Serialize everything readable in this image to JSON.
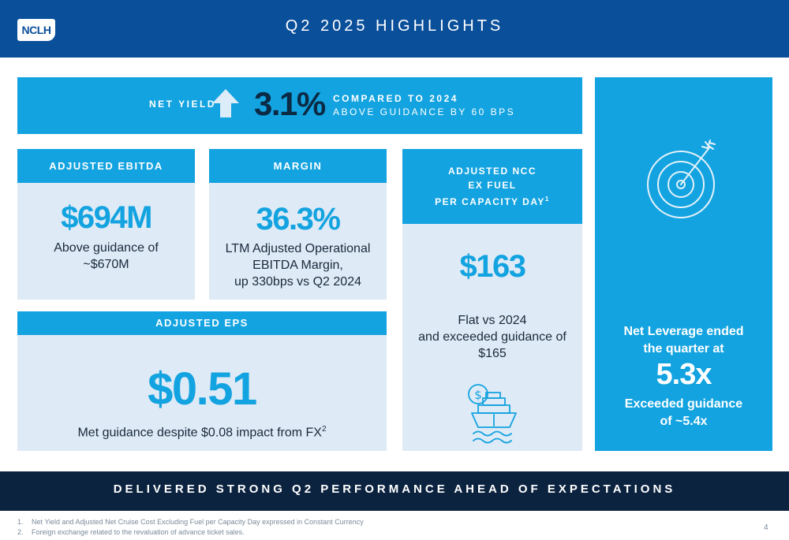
{
  "header": {
    "logo_text": "NCLH",
    "title": "Q2 2025 HIGHLIGHTS"
  },
  "net_yield": {
    "label": "NET YIELD",
    "footnote_marker": "1",
    "arrow_icon": "up-arrow-icon",
    "value": "3.1%",
    "comparison": "COMPARED TO 2024",
    "guidance": "ABOVE GUIDANCE BY 60 BPS"
  },
  "adjusted_ebitda": {
    "title": "ADJUSTED EBITDA",
    "value": "$694M",
    "desc_line1": "Above guidance of",
    "desc_line2": "~$670M"
  },
  "margin": {
    "title": "MARGIN",
    "value": "36.3%",
    "desc_line1": "LTM Adjusted Operational",
    "desc_line2": "EBITDA Margin,",
    "desc_line3": "up 330bps vs Q2 2024"
  },
  "adjusted_ncc": {
    "title_line1": "ADJUSTED NCC",
    "title_line2": "EX FUEL",
    "title_line3": "PER CAPACITY DAY",
    "footnote_marker": "1",
    "value": "$163",
    "desc_line1": "Flat vs 2024",
    "desc_line2": "and exceeded guidance of",
    "desc_line3": "$165",
    "icon": "cruise-ship-dollar-icon"
  },
  "adjusted_eps": {
    "title": "ADJUSTED EPS",
    "value": "$0.51",
    "desc": "Met guidance despite $0.08 impact from FX",
    "footnote_marker": "2"
  },
  "net_leverage": {
    "icon": "target-icon",
    "line1": "Net Leverage ended",
    "line2": "the quarter at",
    "value": "5.3x",
    "line3": "Exceeded guidance",
    "line4": "of ~5.4x"
  },
  "banner": {
    "text": "DELIVERED STRONG Q2 PERFORMANCE AHEAD OF EXPECTATIONS"
  },
  "footnotes": [
    {
      "num": "1.",
      "text": "Net Yield and Adjusted Net Cruise Cost Excluding Fuel per Capacity Day expressed in Constant Currency"
    },
    {
      "num": "2.",
      "text": "Foreign exchange related to the revaluation of advance ticket sales."
    }
  ],
  "page_number": "4",
  "colors": {
    "navy": "#0a4f9a",
    "accent": "#13a3e0",
    "pale": "#deeaf6",
    "dark": "#0c2340"
  }
}
